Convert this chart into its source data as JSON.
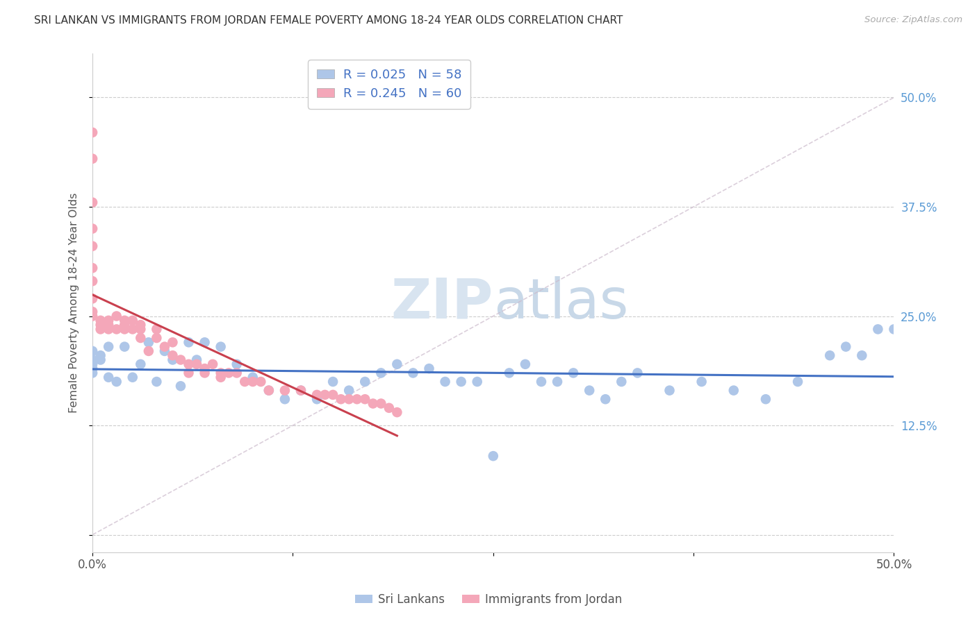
{
  "title": "SRI LANKAN VS IMMIGRANTS FROM JORDAN FEMALE POVERTY AMONG 18-24 YEAR OLDS CORRELATION CHART",
  "source": "Source: ZipAtlas.com",
  "ylabel": "Female Poverty Among 18-24 Year Olds",
  "xlim": [
    0.0,
    0.5
  ],
  "ylim": [
    -0.02,
    0.55
  ],
  "sri_lankans_R": 0.025,
  "sri_lankans_N": 58,
  "jordan_R": 0.245,
  "jordan_N": 60,
  "sri_lankan_color": "#aec6e8",
  "jordan_color": "#f4a7b9",
  "trend_sri_color": "#4472c4",
  "trend_jordan_color": "#c9404e",
  "watermark_color": "#d8e4f0",
  "sri_lankans_x": [
    0.0,
    0.0,
    0.0,
    0.0,
    0.0,
    0.005,
    0.005,
    0.01,
    0.01,
    0.015,
    0.02,
    0.025,
    0.03,
    0.035,
    0.04,
    0.045,
    0.05,
    0.055,
    0.06,
    0.065,
    0.07,
    0.08,
    0.09,
    0.1,
    0.11,
    0.12,
    0.13,
    0.14,
    0.15,
    0.16,
    0.17,
    0.18,
    0.19,
    0.2,
    0.21,
    0.22,
    0.23,
    0.24,
    0.25,
    0.26,
    0.27,
    0.28,
    0.29,
    0.3,
    0.31,
    0.32,
    0.33,
    0.34,
    0.36,
    0.38,
    0.4,
    0.42,
    0.44,
    0.46,
    0.47,
    0.48,
    0.49,
    0.5
  ],
  "sri_lankans_y": [
    0.21,
    0.2,
    0.195,
    0.19,
    0.185,
    0.2,
    0.205,
    0.215,
    0.18,
    0.175,
    0.215,
    0.18,
    0.195,
    0.22,
    0.175,
    0.21,
    0.2,
    0.17,
    0.22,
    0.2,
    0.22,
    0.215,
    0.195,
    0.18,
    0.165,
    0.155,
    0.165,
    0.155,
    0.175,
    0.165,
    0.175,
    0.185,
    0.195,
    0.185,
    0.19,
    0.175,
    0.175,
    0.175,
    0.09,
    0.185,
    0.195,
    0.175,
    0.175,
    0.185,
    0.165,
    0.155,
    0.175,
    0.185,
    0.165,
    0.175,
    0.165,
    0.155,
    0.175,
    0.205,
    0.215,
    0.205,
    0.235,
    0.235
  ],
  "jordan_x": [
    0.0,
    0.0,
    0.0,
    0.0,
    0.0,
    0.0,
    0.0,
    0.0,
    0.0,
    0.0,
    0.005,
    0.005,
    0.005,
    0.01,
    0.01,
    0.01,
    0.015,
    0.015,
    0.02,
    0.02,
    0.02,
    0.025,
    0.025,
    0.03,
    0.03,
    0.03,
    0.035,
    0.04,
    0.04,
    0.045,
    0.05,
    0.05,
    0.055,
    0.06,
    0.06,
    0.065,
    0.07,
    0.07,
    0.075,
    0.08,
    0.08,
    0.085,
    0.09,
    0.095,
    0.1,
    0.105,
    0.11,
    0.12,
    0.13,
    0.14,
    0.145,
    0.15,
    0.155,
    0.16,
    0.165,
    0.17,
    0.175,
    0.18,
    0.185,
    0.19
  ],
  "jordan_y": [
    0.46,
    0.43,
    0.38,
    0.35,
    0.33,
    0.305,
    0.29,
    0.27,
    0.255,
    0.25,
    0.245,
    0.235,
    0.24,
    0.245,
    0.235,
    0.24,
    0.235,
    0.25,
    0.245,
    0.235,
    0.24,
    0.235,
    0.245,
    0.235,
    0.225,
    0.24,
    0.21,
    0.225,
    0.235,
    0.215,
    0.22,
    0.205,
    0.2,
    0.195,
    0.185,
    0.195,
    0.19,
    0.185,
    0.195,
    0.185,
    0.18,
    0.185,
    0.185,
    0.175,
    0.175,
    0.175,
    0.165,
    0.165,
    0.165,
    0.16,
    0.16,
    0.16,
    0.155,
    0.155,
    0.155,
    0.155,
    0.15,
    0.15,
    0.145,
    0.14
  ]
}
